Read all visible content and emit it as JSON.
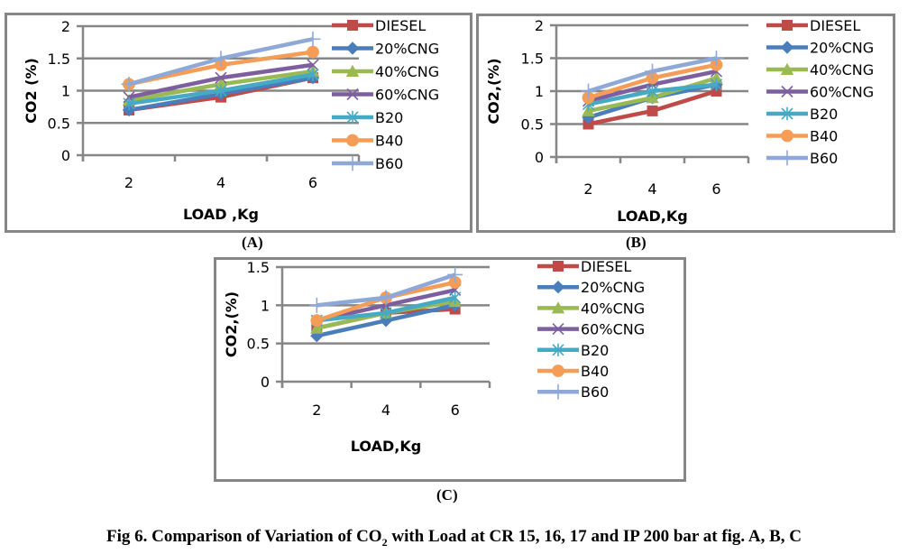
{
  "figure": {
    "caption_prefix": "Fig 6. Comparison of Variation of CO",
    "caption_sub": "2",
    "caption_suffix": " with Load at CR 15, 16, 17 and IP 200 bar at fig. A, B, C"
  },
  "series_styles": [
    {
      "name": "DIESEL",
      "color": "#BE4B48",
      "marker": "square"
    },
    {
      "name": "20%CNG",
      "color": "#4A7EBB",
      "marker": "diamond"
    },
    {
      "name": "40%CNG",
      "color": "#98B954",
      "marker": "triangle"
    },
    {
      "name": "60%CNG",
      "color": "#7D5FA0",
      "marker": "x"
    },
    {
      "name": "B20",
      "color": "#46AAC5",
      "marker": "star"
    },
    {
      "name": "B40",
      "color": "#F59D56",
      "marker": "circle"
    },
    {
      "name": "B60",
      "color": "#8EA9D8",
      "marker": "plus"
    }
  ],
  "chart_data": [
    {
      "id": "A",
      "sub_label": "(A)",
      "type": "line",
      "title": "",
      "xlabel": "LOAD ,Kg",
      "ylabel": "CO2 (%)",
      "categories": [
        "2",
        "4",
        "6"
      ],
      "ylim": [
        0,
        2
      ],
      "yticks": [
        "0",
        "0.5",
        "1",
        "1.5",
        "2"
      ],
      "ytick_values": [
        0,
        0.5,
        1,
        1.5,
        2
      ],
      "grid": true,
      "legend": "right",
      "series": [
        {
          "name": "DIESEL",
          "values": [
            0.7,
            0.9,
            1.2
          ]
        },
        {
          "name": "20%CNG",
          "values": [
            0.7,
            0.95,
            1.2
          ]
        },
        {
          "name": "40%CNG",
          "values": [
            0.85,
            1.1,
            1.3
          ]
        },
        {
          "name": "60%CNG",
          "values": [
            0.9,
            1.2,
            1.4
          ]
        },
        {
          "name": "B20",
          "values": [
            0.8,
            1.0,
            1.25
          ]
        },
        {
          "name": "B40",
          "values": [
            1.1,
            1.4,
            1.6
          ]
        },
        {
          "name": "B60",
          "values": [
            1.1,
            1.5,
            1.8
          ]
        }
      ]
    },
    {
      "id": "B",
      "sub_label": "(B)",
      "type": "line",
      "title": "",
      "xlabel": "LOAD,Kg",
      "ylabel": "CO2,(%)",
      "categories": [
        "2",
        "4",
        "6"
      ],
      "ylim": [
        0,
        2
      ],
      "yticks": [
        "0",
        "0.5",
        "1",
        "1.5",
        "2"
      ],
      "ytick_values": [
        0,
        0.5,
        1,
        1.5,
        2
      ],
      "grid": true,
      "legend": "right",
      "series": [
        {
          "name": "DIESEL",
          "values": [
            0.5,
            0.7,
            1.0
          ]
        },
        {
          "name": "20%CNG",
          "values": [
            0.6,
            0.9,
            1.1
          ]
        },
        {
          "name": "40%CNG",
          "values": [
            0.7,
            0.9,
            1.2
          ]
        },
        {
          "name": "60%CNG",
          "values": [
            0.85,
            1.1,
            1.3
          ]
        },
        {
          "name": "B20",
          "values": [
            0.8,
            1.0,
            1.1
          ]
        },
        {
          "name": "B40",
          "values": [
            0.9,
            1.2,
            1.4
          ]
        },
        {
          "name": "B60",
          "values": [
            1.0,
            1.3,
            1.5
          ]
        }
      ]
    },
    {
      "id": "C",
      "sub_label": "(C)",
      "type": "line",
      "title": "",
      "xlabel": "LOAD,Kg",
      "ylabel": "CO2,(%)",
      "categories": [
        "2",
        "4",
        "6"
      ],
      "ylim": [
        0,
        1.5
      ],
      "yticks": [
        "0",
        "0.5",
        "1",
        "1.5"
      ],
      "ytick_values": [
        0,
        0.5,
        1,
        1.5
      ],
      "grid": true,
      "legend": "right",
      "series": [
        {
          "name": "DIESEL",
          "values": [
            0.7,
            0.9,
            0.95
          ]
        },
        {
          "name": "20%CNG",
          "values": [
            0.6,
            0.8,
            1.0
          ]
        },
        {
          "name": "40%CNG",
          "values": [
            0.7,
            0.9,
            1.05
          ]
        },
        {
          "name": "60%CNG",
          "values": [
            0.8,
            1.0,
            1.2
          ]
        },
        {
          "name": "B20",
          "values": [
            0.8,
            0.9,
            1.1
          ]
        },
        {
          "name": "B40",
          "values": [
            0.8,
            1.1,
            1.3
          ]
        },
        {
          "name": "B60",
          "values": [
            1.0,
            1.1,
            1.4
          ]
        }
      ]
    }
  ]
}
